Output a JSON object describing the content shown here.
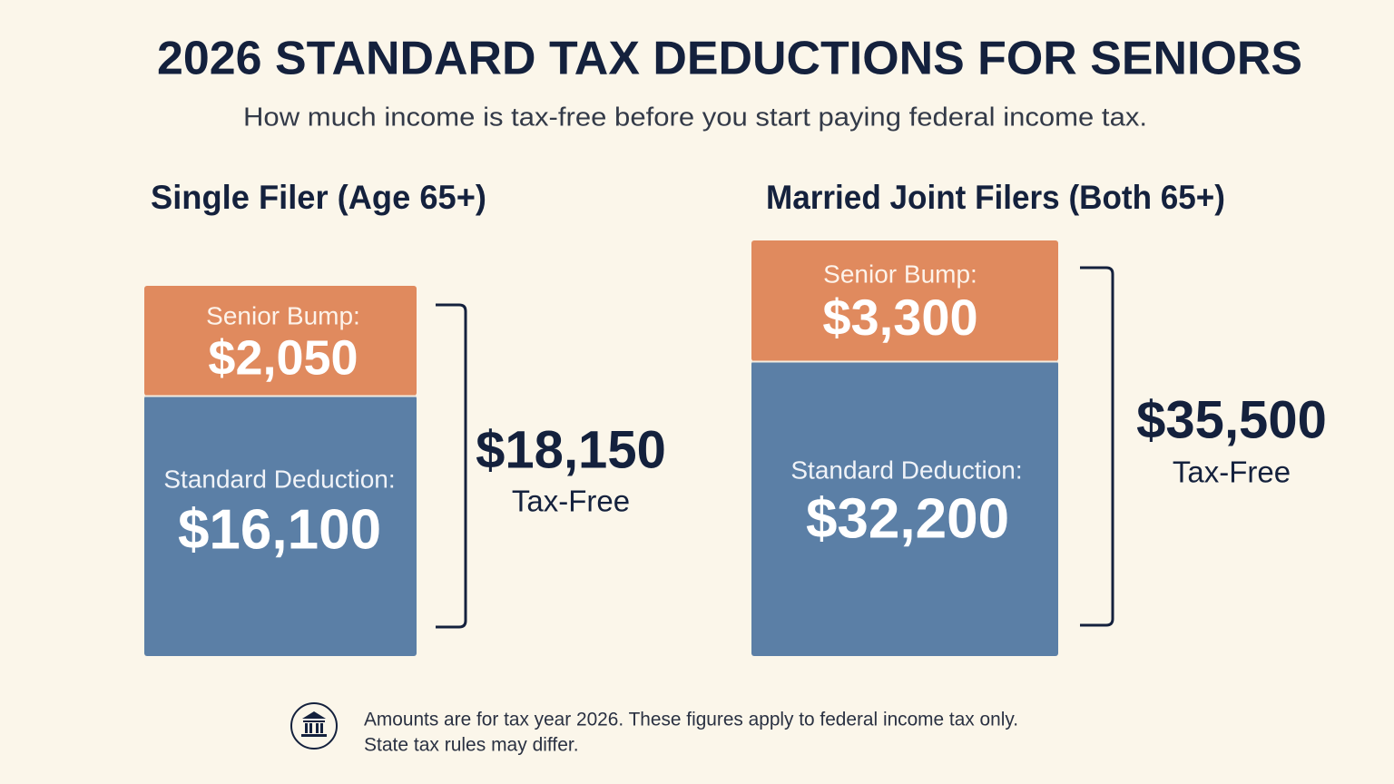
{
  "header": {
    "title": "2026 STANDARD TAX DEDUCTIONS FOR SENIORS",
    "subtitle": "How much income is tax-free before you start paying federal income tax."
  },
  "panels": [
    {
      "heading": "Single Filer (Age 65+)",
      "segments": [
        {
          "label": "Senior Bump:",
          "value": "$2,050"
        },
        {
          "label": "Standard Deduction:",
          "value": "$16,100"
        }
      ],
      "total": "$18,150",
      "total_label": "Tax-Free"
    },
    {
      "heading": "Married Joint Filers (Both 65+)",
      "segments": [
        {
          "label": "Senior Bump:",
          "value": "$3,300"
        },
        {
          "label": "Standard Deduction:",
          "value": "$32,200"
        }
      ],
      "total": "$35,500",
      "total_label": "Tax-Free"
    }
  ],
  "footnote": {
    "lines": [
      "Amounts are for tax year 2026. These figures apply to federal income tax only.",
      "State tax rules may differ."
    ]
  }
}
